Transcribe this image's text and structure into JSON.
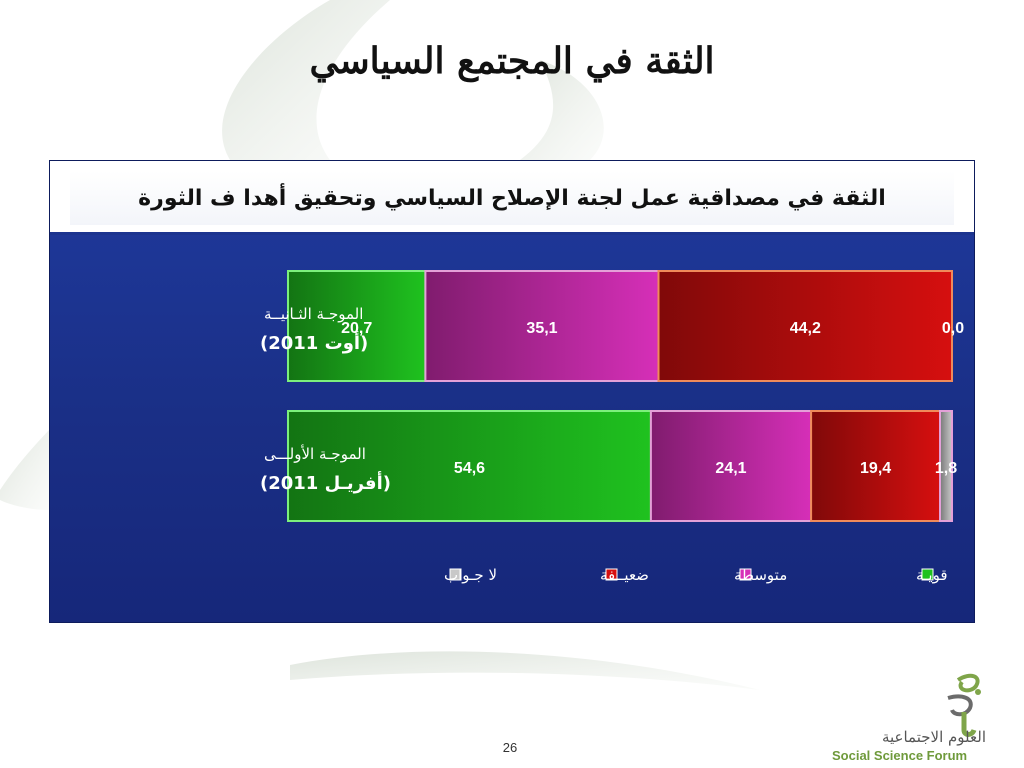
{
  "slide": {
    "title": "الثقة في المجتمع السياسي",
    "page_number": "26"
  },
  "logo": {
    "arabic_text": "العلوم الاجتماعية",
    "english_text": "Social Science Forum"
  },
  "chart_data": {
    "type": "bar",
    "orientation": "horizontal-stacked-100",
    "title": "الثقة في مصداقية عمل لجنة  الإصلاح السياسي وتحقيق أهدا ف الثورة",
    "categories": [
      {
        "line1": "الموجـة الثـانيــة",
        "line2": "(أوت 2011)"
      },
      {
        "line1": "الموجـة الأولـــى",
        "line2": "(أفريـل 2011)"
      }
    ],
    "series": [
      {
        "name": "قويـة",
        "color": "#1fc21f",
        "values": [
          20.7,
          54.6
        ],
        "labels": [
          "20,7",
          "54,6"
        ]
      },
      {
        "name": "متوسطة",
        "color": "#d62fb8",
        "values": [
          35.1,
          24.1
        ],
        "labels": [
          "35,1",
          "24,1"
        ]
      },
      {
        "name": "ضعيــفة",
        "color": "#d60f0f",
        "values": [
          44.2,
          19.4
        ],
        "labels": [
          "44,2",
          "19,4"
        ]
      },
      {
        "name": "لا جـواب",
        "color": "#c8c8c8",
        "values": [
          0.0,
          1.8
        ],
        "labels": [
          "0,0",
          "1,8"
        ]
      }
    ],
    "legend_position": "bottom",
    "grid": false
  }
}
